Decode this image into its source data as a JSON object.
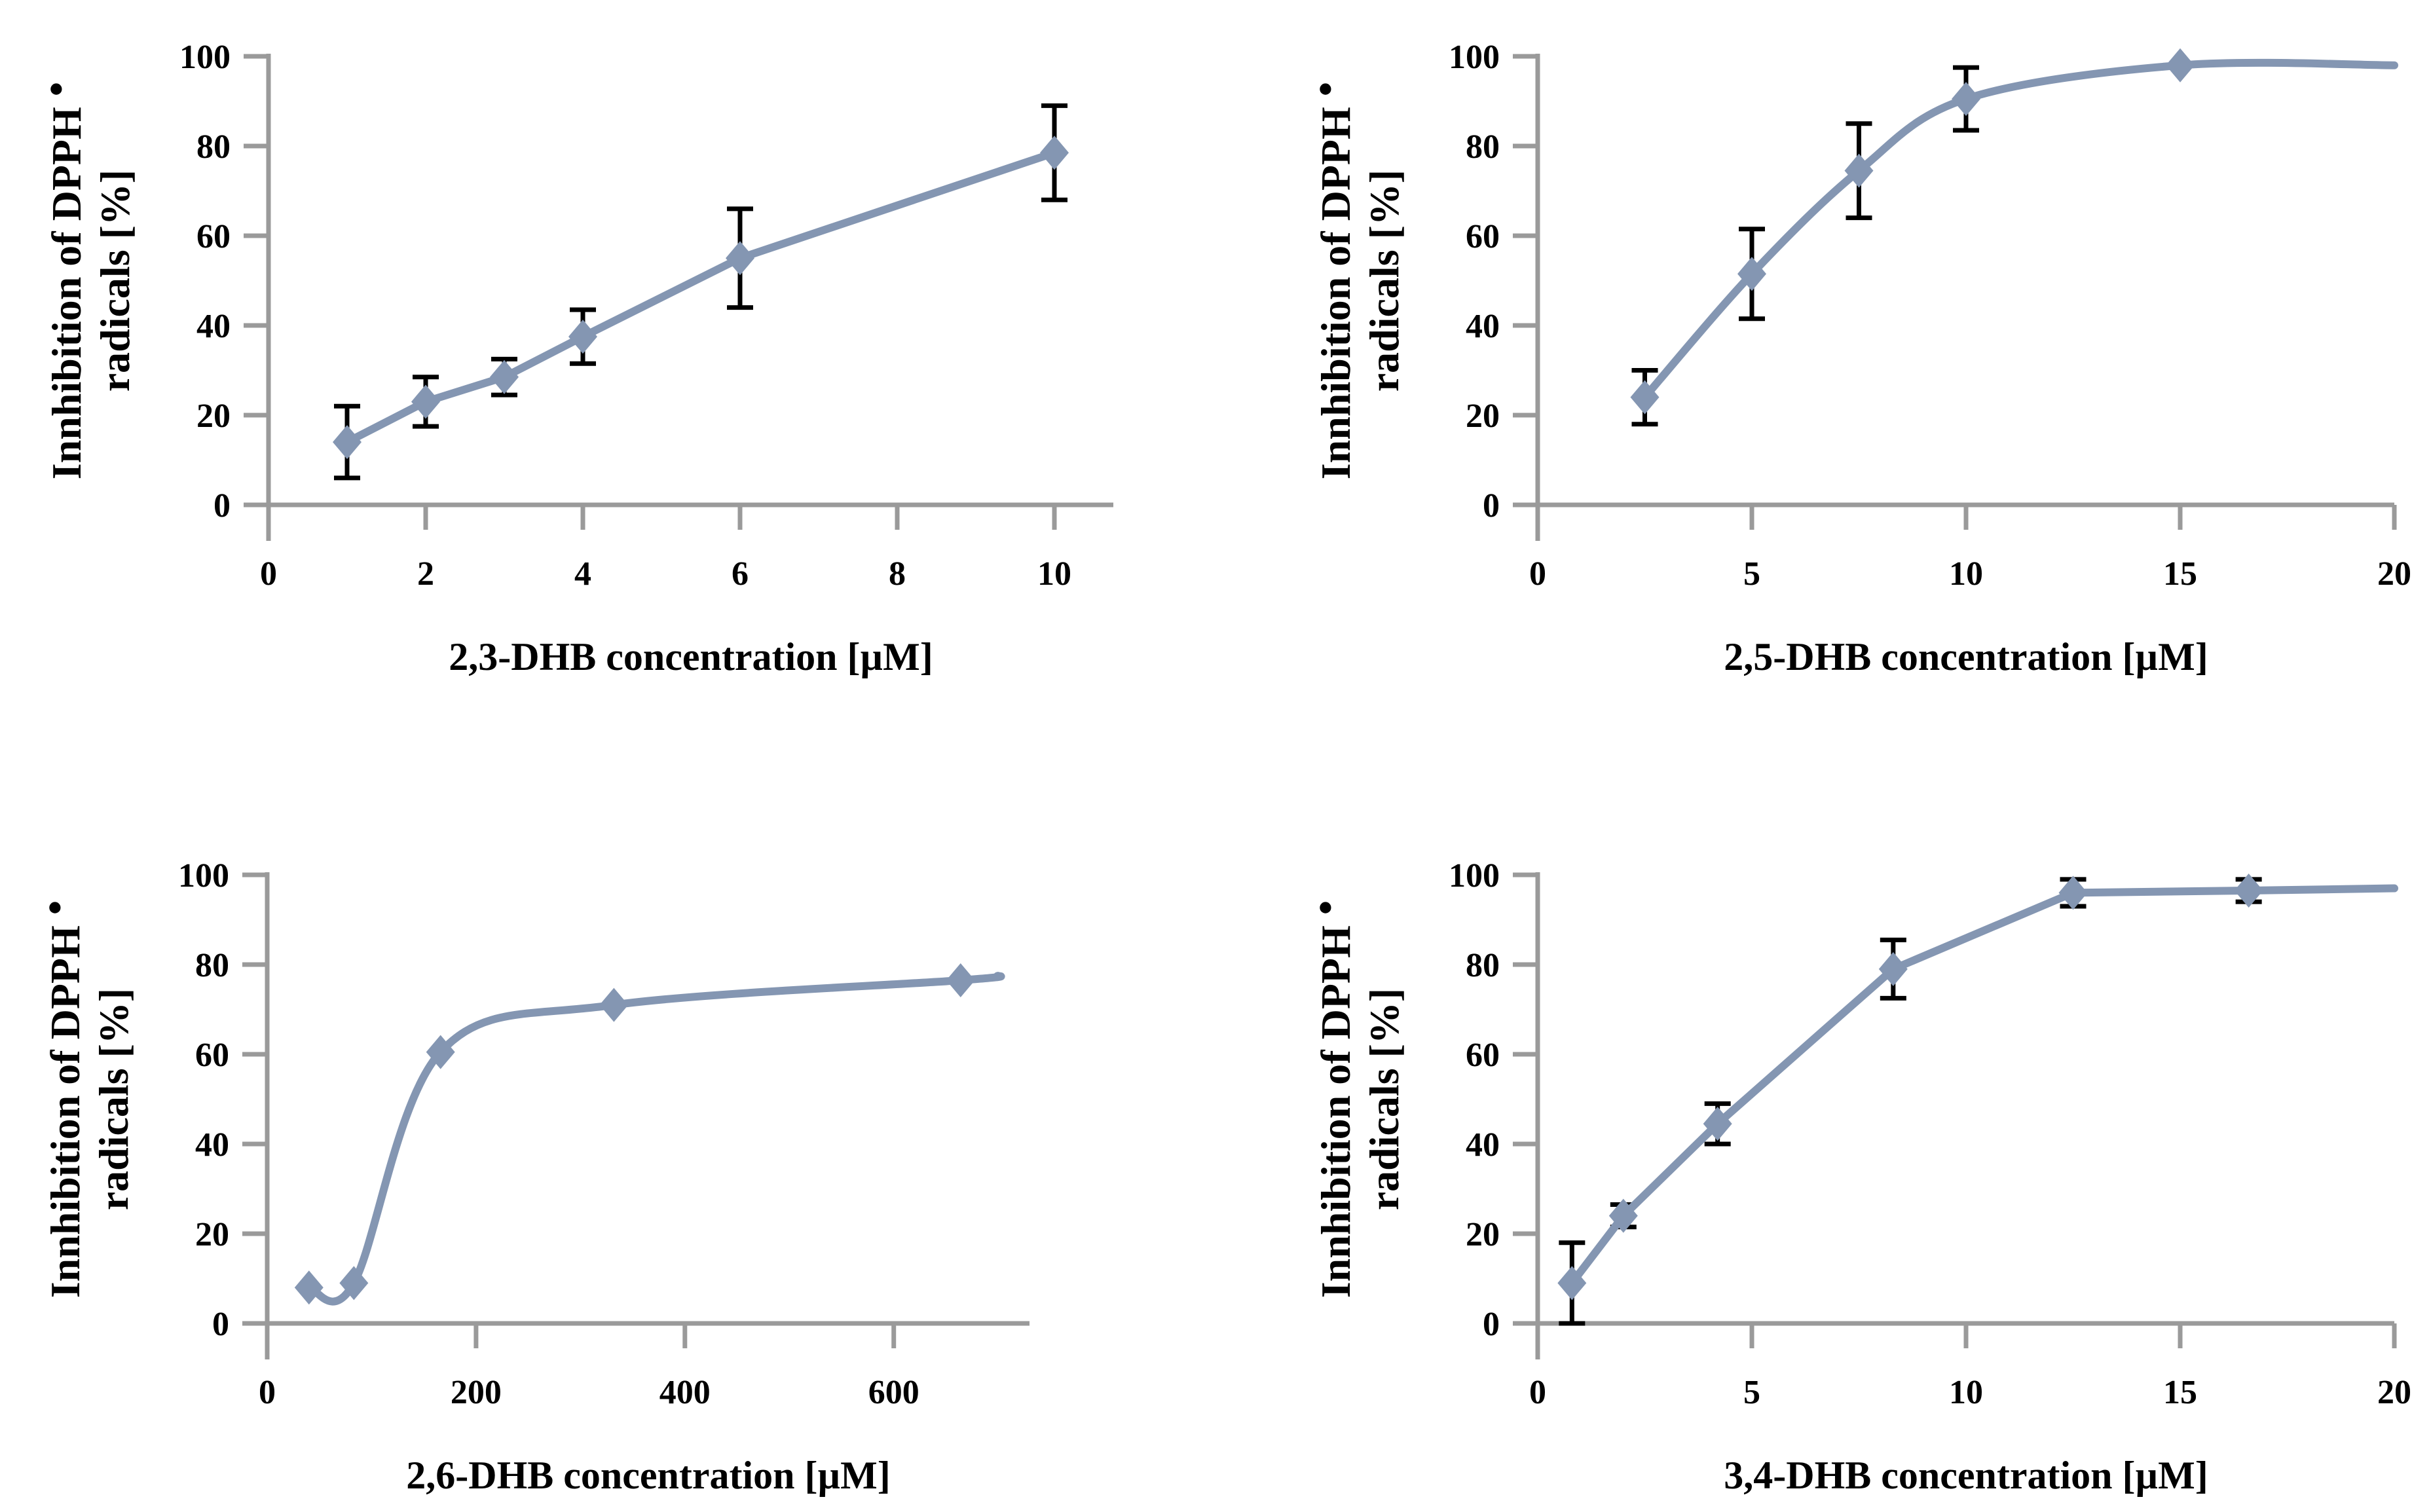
{
  "figure": {
    "background": "#ffffff",
    "description": "Four-panel line figure: DPPH radical inhibition vs DHB isomer concentration"
  },
  "colors": {
    "series": "#8496B2",
    "marker": "#8496B2",
    "error_bar": "#000000",
    "axis": "#9A9A9A",
    "text": "#000000"
  },
  "shared_y_axis": {
    "label_line1": "Innhibition of DPPH",
    "label_bullet": "•",
    "label_line2": "radicals [%]",
    "ticks": [
      0,
      20,
      40,
      60,
      80,
      100
    ],
    "ylim": [
      0,
      100
    ]
  },
  "chart_data": [
    {
      "type": "line",
      "name": "2,3-DHB",
      "xlabel": "2,3-DHB concentration [µM]",
      "ylabel": "Innhibition of DPPH• radicals [%]",
      "smooth": false,
      "xticks": [
        0,
        2,
        4,
        6,
        8,
        10
      ],
      "xlim": [
        0,
        10.75
      ],
      "ylim": [
        0,
        100
      ],
      "x": [
        1,
        2,
        3,
        4,
        6,
        10
      ],
      "y": [
        14,
        23,
        28.5,
        37.5,
        55,
        78.5
      ],
      "yerr": [
        8,
        5.5,
        4,
        6,
        11,
        10.5
      ],
      "extend": null,
      "legend": false,
      "grid": false
    },
    {
      "type": "line",
      "name": "2,5-DHB",
      "xlabel": "2,5-DHB concentration [µM]",
      "ylabel": "Innhibition of DPPH• radicals [%]",
      "smooth": true,
      "xticks": [
        0,
        5,
        10,
        15,
        20
      ],
      "xlim": [
        0,
        20
      ],
      "ylim": [
        0,
        100
      ],
      "x": [
        2.5,
        5,
        7.5,
        10,
        15
      ],
      "y": [
        24,
        51.5,
        74.5,
        90.5,
        98
      ],
      "yerr": [
        6,
        10,
        10.5,
        7,
        0
      ],
      "extend": {
        "x": 20,
        "y": 98
      },
      "legend": false,
      "grid": false
    },
    {
      "type": "line",
      "name": "2,6-DHB",
      "xlabel": "2,6-DHB concentration [µM]",
      "ylabel": "Innhibition of DPPH• radicals [%]",
      "smooth": true,
      "xticks": [
        0,
        200,
        400,
        600
      ],
      "xlim": [
        0,
        730
      ],
      "ylim": [
        0,
        100
      ],
      "x": [
        40,
        83,
        166,
        332,
        664
      ],
      "y": [
        8,
        9,
        60.5,
        71,
        76.5
      ],
      "yerr": [
        0,
        0,
        0,
        0,
        0
      ],
      "extend": {
        "x": 700,
        "y": 77.5
      },
      "legend": false,
      "grid": false
    },
    {
      "type": "line",
      "name": "3,4-DHB",
      "xlabel": "3,4-DHB concentration [µM]",
      "ylabel": "Innhibition of DPPH• radicals [%]",
      "smooth": false,
      "xticks": [
        0,
        5,
        10,
        15,
        20
      ],
      "xlim": [
        0,
        20
      ],
      "ylim": [
        0,
        100
      ],
      "x": [
        0.8,
        2,
        4.2,
        8.3,
        12.5,
        16.6
      ],
      "y": [
        9,
        24,
        44.5,
        79,
        96,
        96.5
      ],
      "yerr": [
        9,
        2.5,
        4.5,
        6.5,
        3,
        2.5
      ],
      "extend": {
        "x": 20,
        "y": 97
      },
      "legend": false,
      "grid": false
    }
  ]
}
